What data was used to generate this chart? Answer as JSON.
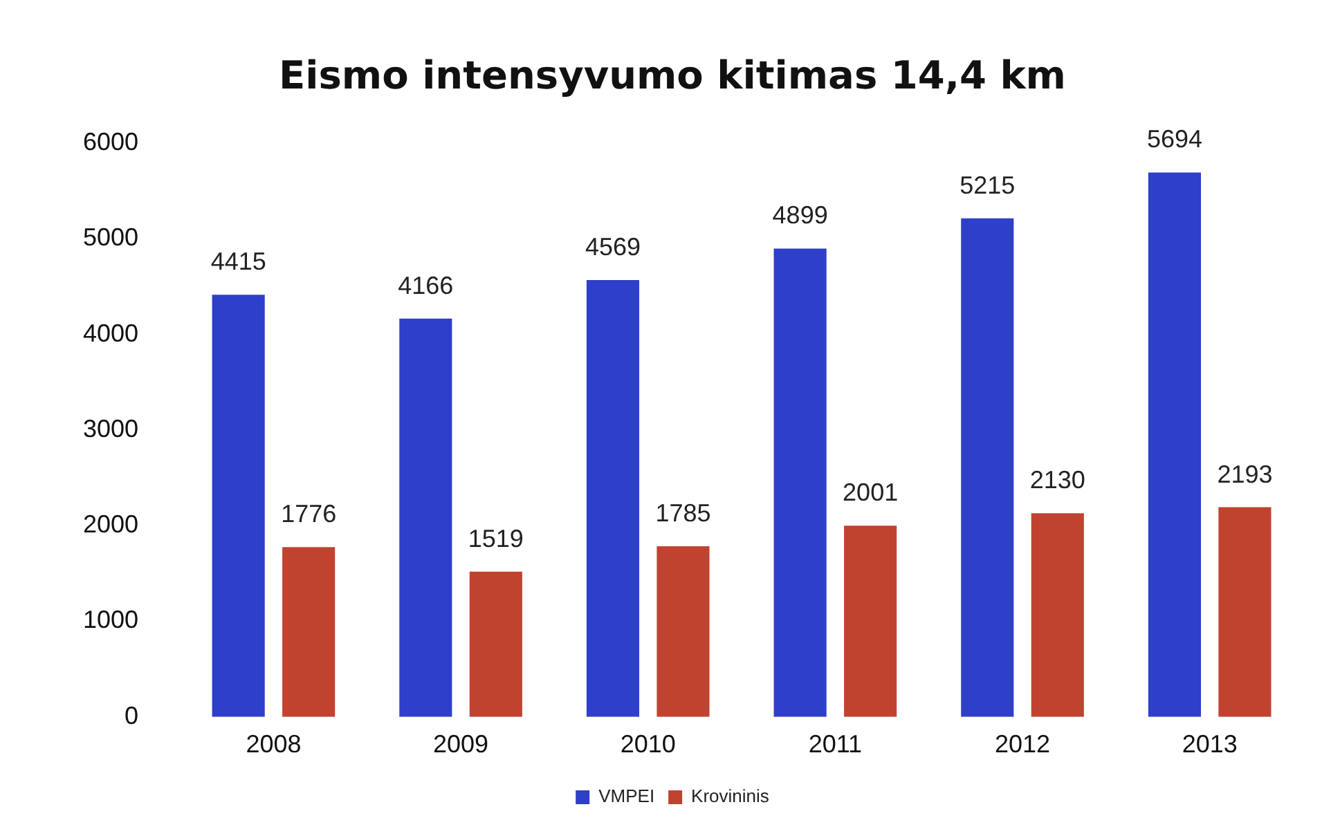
{
  "chart_data": {
    "type": "bar",
    "title": "Eismo intensyvumo kitimas 14,4 km",
    "categories": [
      "2008",
      "2009",
      "2010",
      "2011",
      "2012",
      "2013"
    ],
    "series": [
      {
        "name": "VMPEI",
        "color": "#2e3fc9",
        "values": [
          4415,
          4166,
          4569,
          4899,
          5215,
          5694
        ]
      },
      {
        "name": "Krovininis",
        "color": "#c0432f",
        "values": [
          1776,
          1519,
          1785,
          2001,
          2130,
          2193
        ]
      }
    ],
    "ylim": [
      0,
      6000
    ],
    "yticks": [
      0,
      1000,
      2000,
      3000,
      4000,
      5000,
      6000
    ],
    "grid": false,
    "legend": "bottom",
    "data_labels": true
  }
}
